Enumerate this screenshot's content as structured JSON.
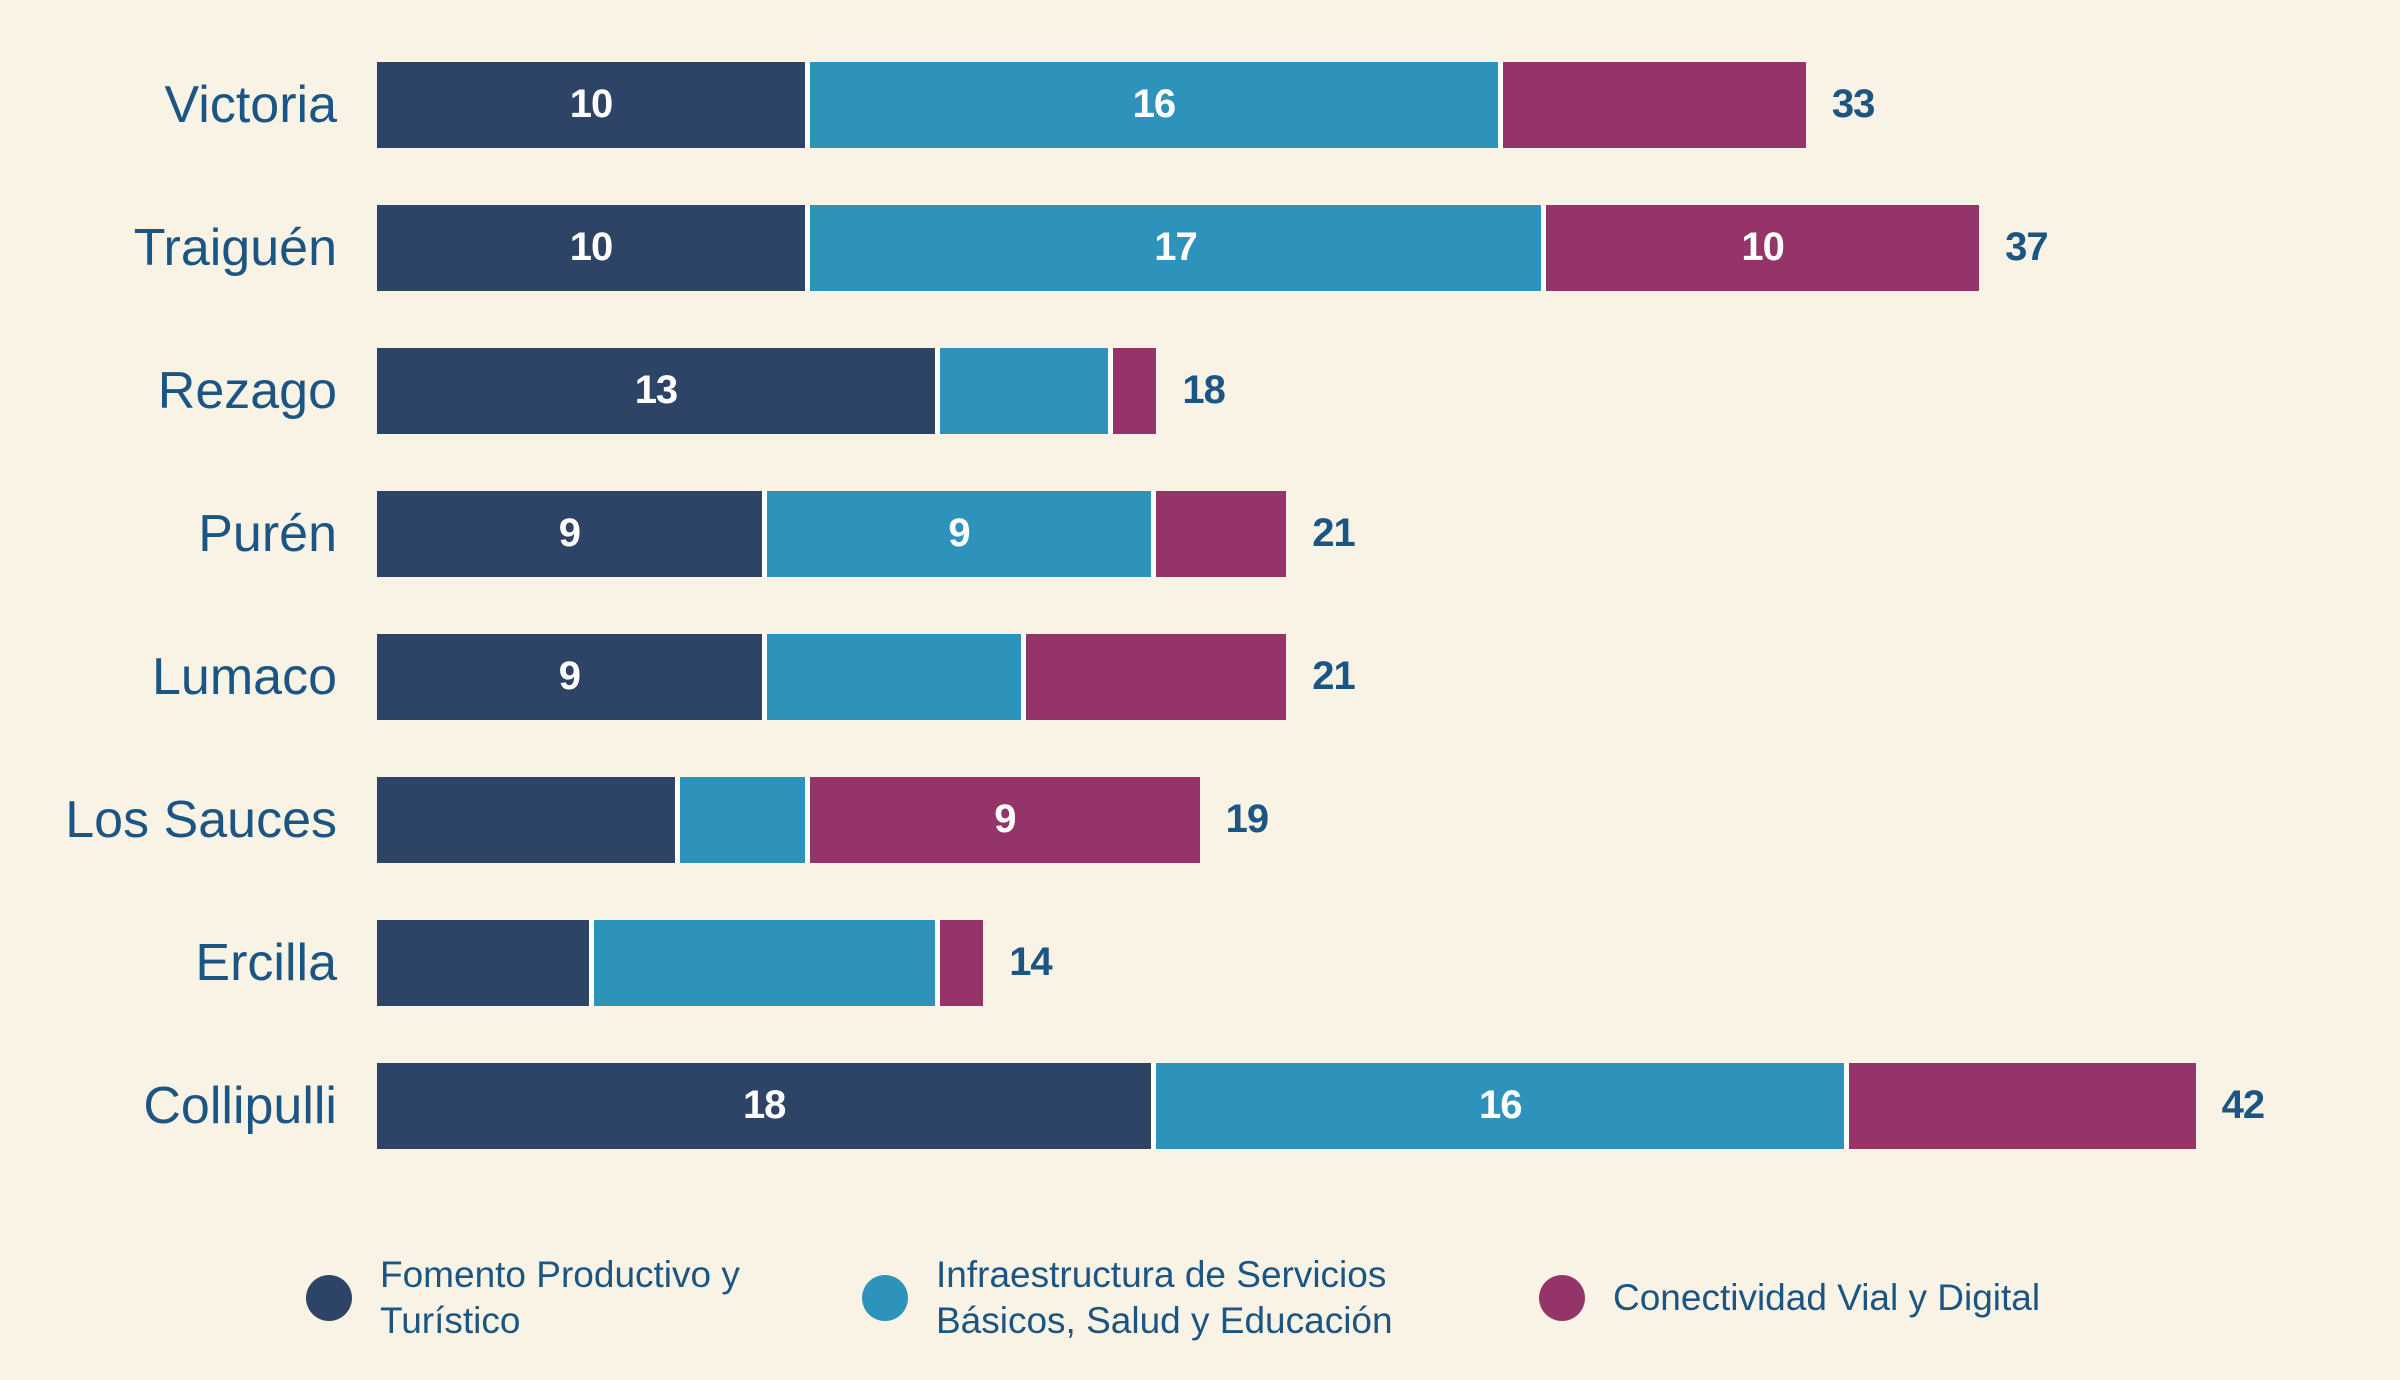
{
  "colors": {
    "background": "#f9f3e5",
    "label_text": "#1b5583",
    "value_text": "#ffffff",
    "segment_gap": "#ffffff"
  },
  "chart_data": {
    "type": "bar",
    "orientation": "horizontal",
    "stacked": true,
    "grid": false,
    "legend_position": "bottom",
    "xlim": [
      0,
      42
    ],
    "categories": [
      "Victoria",
      "Traiguén",
      "Rezago",
      "Purén",
      "Lumaco",
      "Los Sauces",
      "Ercilla",
      "Collipulli"
    ],
    "series": [
      {
        "name": "Fomento Productivo y Turístico",
        "color": "#2e4466",
        "values": [
          10,
          10,
          13,
          9,
          9,
          7,
          5,
          18
        ]
      },
      {
        "name": "Infraestructura de Servicios Básicos, Salud y Educación",
        "color": "#2e93bb",
        "values": [
          16,
          17,
          4,
          9,
          6,
          3,
          8,
          16
        ]
      },
      {
        "name": "Conectividad Vial y Digital",
        "color": "#953468",
        "values": [
          7,
          10,
          1,
          3,
          6,
          9,
          1,
          8
        ]
      }
    ],
    "segment_labels": [
      [
        "10",
        "16",
        ""
      ],
      [
        "10",
        "17",
        "10"
      ],
      [
        "13",
        "",
        ""
      ],
      [
        "9",
        "9",
        ""
      ],
      [
        "9",
        "",
        ""
      ],
      [
        "",
        "",
        "9"
      ],
      [
        "",
        "",
        ""
      ],
      [
        "18",
        "16",
        ""
      ]
    ],
    "totals": [
      33,
      37,
      18,
      21,
      21,
      19,
      14,
      42
    ]
  }
}
